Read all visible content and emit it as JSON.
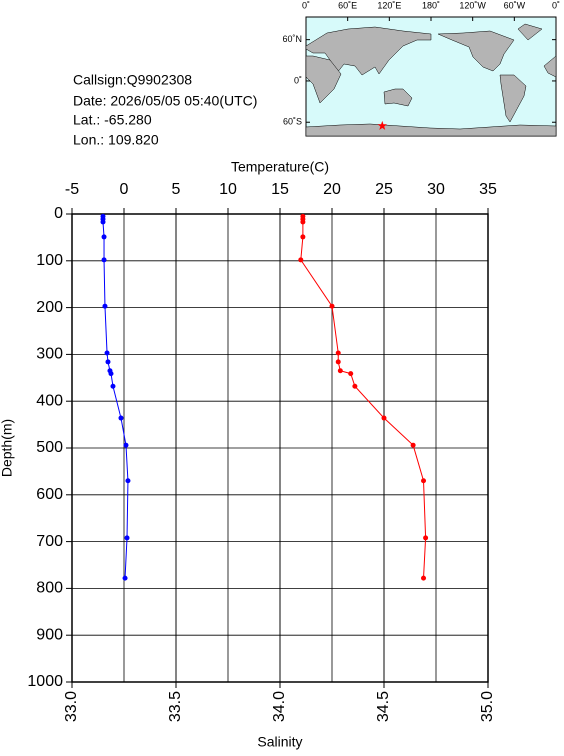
{
  "info": {
    "callsign": "Callsign:Q9902308",
    "date": "Date:  2026/05/05 05:40(UTC)",
    "lat": "Lat.:  -65.280",
    "lon": "Lon.:  109.820"
  },
  "map": {
    "lonlim": [
      0,
      360
    ],
    "latlim": [
      -80,
      90
    ],
    "lonticks": [
      {
        "value": 0,
        "label": "0˚"
      },
      {
        "value": 60,
        "label": "60˚E"
      },
      {
        "value": 120,
        "label": "120˚E"
      },
      {
        "value": 180,
        "label": "180˚"
      },
      {
        "value": 240,
        "label": "120˚W"
      },
      {
        "value": 300,
        "label": "60˚W"
      },
      {
        "value": 360,
        "label": "0˚"
      }
    ],
    "latticks": [
      {
        "value": 60,
        "label": "60˚N"
      },
      {
        "value": 0,
        "label": "0˚"
      },
      {
        "value": -60,
        "label": "60˚S"
      }
    ],
    "marker": {
      "lon": 109.82,
      "lat": -65.28,
      "color": "#ff0000"
    }
  },
  "chart_data": {
    "type": "line",
    "x2label": "Temperature(C)",
    "xlabel": "Salinity",
    "ylabel": "Depth(m)",
    "y": [
      5,
      11,
      17,
      49,
      98,
      197,
      297,
      316,
      335,
      341,
      368,
      436,
      494,
      570,
      692,
      778
    ],
    "ylim": [
      0,
      1000
    ],
    "yticks": [
      0,
      100,
      200,
      300,
      400,
      500,
      600,
      700,
      800,
      900,
      1000
    ],
    "x2lim": [
      -5,
      35
    ],
    "x2ticks": [
      -5,
      0,
      5,
      10,
      15,
      20,
      25,
      30,
      35
    ],
    "xlim": [
      33,
      35
    ],
    "xticks": [
      {
        "value": 33,
        "label": "33.0"
      },
      {
        "value": 33.5,
        "label": "33.5"
      },
      {
        "value": 34,
        "label": "34.0"
      },
      {
        "value": 34.5,
        "label": "34.5"
      },
      {
        "value": 35,
        "label": "35.0"
      }
    ],
    "grid": true,
    "series": [
      {
        "color": "#0000ff",
        "axis": "x2",
        "values": [
          -2.02,
          -2.02,
          -2.02,
          -1.92,
          -1.92,
          -1.83,
          -1.63,
          -1.54,
          -1.35,
          -1.25,
          -1.06,
          -0.29,
          0.19,
          0.38,
          0.29,
          0.1
        ]
      },
      {
        "color": "#ff0000",
        "axis": "x",
        "values": [
          34.11,
          34.11,
          34.11,
          34.11,
          34.1,
          34.25,
          34.28,
          34.28,
          34.29,
          34.34,
          34.36,
          34.5,
          34.64,
          34.69,
          34.7,
          34.69
        ]
      }
    ]
  }
}
